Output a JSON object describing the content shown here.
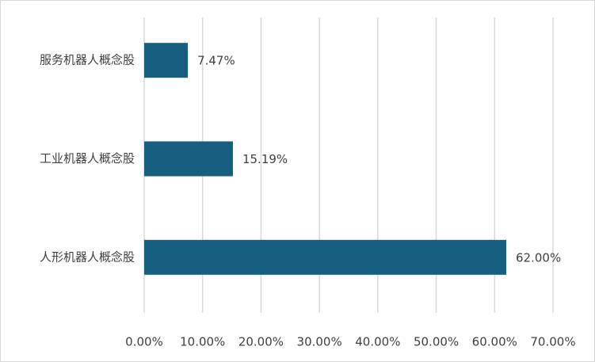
{
  "chart_data": {
    "type": "bar",
    "orientation": "horizontal",
    "categories": [
      "服务机器人概念股",
      "工业机器人概念股",
      "人形机器人概念股"
    ],
    "values": [
      7.47,
      15.19,
      62.0
    ],
    "value_labels": [
      "7.47%",
      "15.19%",
      "62.00%"
    ],
    "color": "#175f80",
    "xlim": [
      0,
      70
    ],
    "xticks": [
      {
        "value": 0,
        "label": "0.00%"
      },
      {
        "value": 10,
        "label": "10.00%"
      },
      {
        "value": 20,
        "label": "20.00%"
      },
      {
        "value": 30,
        "label": "30.00%"
      },
      {
        "value": 40,
        "label": "40.00%"
      },
      {
        "value": 50,
        "label": "50.00%"
      },
      {
        "value": 60,
        "label": "60.00%"
      },
      {
        "value": 70,
        "label": "70.00%"
      }
    ],
    "grid": true
  }
}
